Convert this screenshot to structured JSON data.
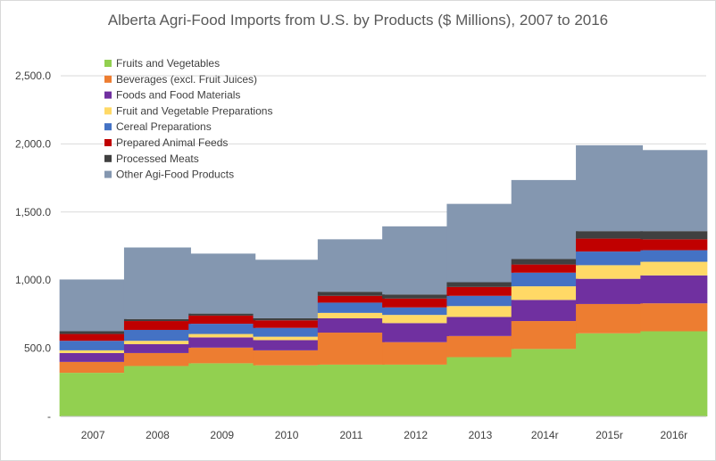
{
  "chart_data": {
    "type": "bar",
    "stacked": true,
    "title": "Alberta Agri-Food Imports from U.S. by Products ($ Millions), 2007 to 2016",
    "xlabel": "",
    "ylabel": "",
    "categories": [
      "2007",
      "2008",
      "2009",
      "2010",
      "2011",
      "2012",
      "2013",
      "2014r",
      "2015r",
      "2016r"
    ],
    "ylim": [
      0,
      2500
    ],
    "yticks": [
      0,
      500,
      1000,
      1500,
      2000,
      2500
    ],
    "ytick_labels": [
      "-",
      "500.0",
      "1,000.0",
      "1,500.0",
      "2,000.0",
      "2,500.0"
    ],
    "grid": true,
    "legend_position": "top-left",
    "series": [
      {
        "name": "Fruits and Vegetables",
        "color": "#92D050",
        "values": [
          320,
          370,
          390,
          375,
          380,
          380,
          435,
          495,
          610,
          625
        ]
      },
      {
        "name": "Beverages (excl. Fruit Juices)",
        "color": "#ED7D31",
        "values": [
          80,
          95,
          115,
          110,
          235,
          165,
          155,
          205,
          215,
          205
        ]
      },
      {
        "name": "Foods and Food Materials",
        "color": "#7030A0",
        "values": [
          65,
          65,
          75,
          75,
          105,
          140,
          140,
          155,
          185,
          205
        ]
      },
      {
        "name": "Fruit and Vegetable Preparations",
        "color": "#FFD966",
        "values": [
          20,
          25,
          25,
          25,
          40,
          60,
          80,
          100,
          100,
          100
        ]
      },
      {
        "name": "Cereal Preparations",
        "color": "#4472C4",
        "values": [
          70,
          80,
          75,
          65,
          75,
          55,
          75,
          100,
          100,
          85
        ]
      },
      {
        "name": "Prepared Animal Feeds",
        "color": "#C00000",
        "values": [
          50,
          65,
          60,
          55,
          50,
          65,
          65,
          60,
          95,
          80
        ]
      },
      {
        "name": "Processed Meats",
        "color": "#404040",
        "values": [
          20,
          15,
          15,
          15,
          30,
          30,
          35,
          40,
          55,
          60
        ]
      },
      {
        "name": "Other Agi-Food Products",
        "color": "#8497B0",
        "values": [
          380,
          525,
          440,
          430,
          385,
          500,
          575,
          580,
          630,
          595
        ]
      }
    ]
  }
}
